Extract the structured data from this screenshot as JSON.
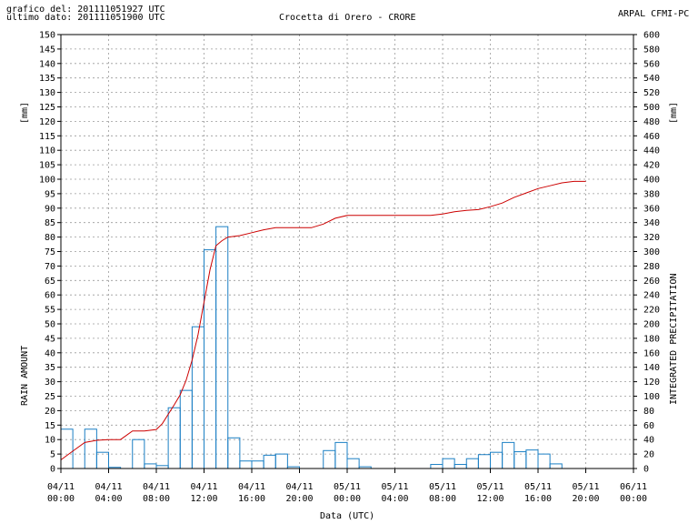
{
  "header": {
    "graph_date_label": "grafico del: 201111051927 UTC",
    "last_data_label": "ultimo dato: 201111051900 UTC",
    "station_title": "Crocetta di Orero - CRORE",
    "agency": "ARPAL CFMI-PC"
  },
  "colors": {
    "bars": "#1a7fc4",
    "cumulative_line": "#cc0000",
    "grid": "#9a9a9a"
  },
  "chart_data": {
    "type": "bar+line",
    "title": "Crocetta di Orero - CRORE",
    "xlabel": "Data (UTC)",
    "ylabel_left": "RAIN AMOUNT",
    "ylabel_left_unit": "[mm]",
    "ylabel_right": "INTEGRATED PRECIPITATION",
    "ylabel_right_unit": "[mm]",
    "x_range_hours": [
      0,
      48
    ],
    "ylim_left": [
      0,
      150
    ],
    "ylim_right": [
      0,
      600
    ],
    "y_ticks_left": [
      0,
      5,
      10,
      15,
      20,
      25,
      30,
      35,
      40,
      45,
      50,
      55,
      60,
      65,
      70,
      75,
      80,
      85,
      90,
      95,
      100,
      105,
      110,
      115,
      120,
      125,
      130,
      135,
      140,
      145,
      150
    ],
    "y_ticks_right": [
      0,
      20,
      40,
      60,
      80,
      100,
      120,
      140,
      160,
      180,
      200,
      220,
      240,
      260,
      280,
      300,
      320,
      340,
      360,
      380,
      400,
      420,
      440,
      460,
      480,
      500,
      520,
      540,
      560,
      580,
      600
    ],
    "x_ticks": [
      {
        "date": "04/11",
        "time": "00:00"
      },
      {
        "date": "04/11",
        "time": "04:00"
      },
      {
        "date": "04/11",
        "time": "08:00"
      },
      {
        "date": "04/11",
        "time": "12:00"
      },
      {
        "date": "04/11",
        "time": "16:00"
      },
      {
        "date": "04/11",
        "time": "20:00"
      },
      {
        "date": "05/11",
        "time": "00:00"
      },
      {
        "date": "05/11",
        "time": "04:00"
      },
      {
        "date": "05/11",
        "time": "08:00"
      },
      {
        "date": "05/11",
        "time": "12:00"
      },
      {
        "date": "05/11",
        "time": "16:00"
      },
      {
        "date": "05/11",
        "time": "20:00"
      },
      {
        "date": "06/11",
        "time": "00:00"
      }
    ],
    "grid": true,
    "hourly_rain_mm": [
      13.6,
      0,
      13.6,
      5.6,
      0.4,
      0,
      10.0,
      1.6,
      1.0,
      21.0,
      27.0,
      49.0,
      75.6,
      83.6,
      10.6,
      2.6,
      2.6,
      4.6,
      5.0,
      0.6,
      0,
      0,
      6.2,
      9.0,
      3.4,
      0.6,
      0,
      0,
      0,
      0,
      0,
      1.4,
      3.4,
      1.4,
      3.4,
      4.8,
      5.6,
      9.0,
      5.8,
      6.4,
      5.0,
      1.6,
      0,
      0,
      0,
      0,
      0,
      0
    ],
    "cumulative": {
      "x_hours": [
        0,
        1,
        2,
        3,
        4,
        5,
        6,
        7,
        8,
        8.5,
        9,
        9.5,
        10,
        10.5,
        11,
        11.5,
        12,
        12.5,
        13,
        13.5,
        14,
        15,
        16,
        17,
        18,
        19,
        20,
        21,
        22,
        23,
        24,
        25,
        26,
        27,
        28,
        29,
        30,
        31,
        32,
        33,
        34,
        35,
        36,
        37,
        38,
        39,
        40,
        41,
        42,
        43,
        44
      ],
      "values": [
        12,
        24,
        36,
        39,
        40,
        40,
        52,
        52,
        54,
        62,
        75,
        88,
        102,
        122,
        150,
        185,
        230,
        275,
        308,
        315,
        320,
        322,
        326,
        330,
        333,
        333,
        333,
        333,
        338,
        346,
        350,
        350,
        350,
        350,
        350,
        350,
        350,
        350,
        352,
        355,
        357,
        358,
        362,
        367,
        375,
        381,
        387,
        391,
        395,
        397,
        397
      ]
    }
  }
}
